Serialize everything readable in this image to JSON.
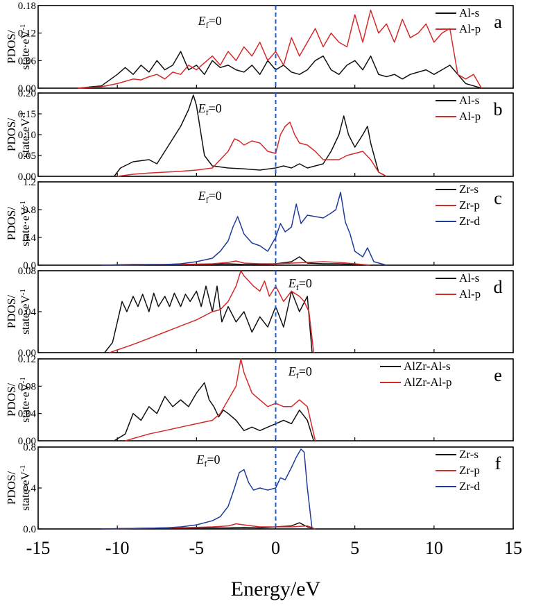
{
  "chart_data": {
    "type": "line",
    "xlabel": "Energy/eV",
    "ylabel_line1": "PDOS/",
    "ylabel_line2": "state·eV",
    "ylabel_sup": "-1",
    "xlim": [
      -15,
      15
    ],
    "xticks": [
      "-15",
      "-10",
      "-5",
      "0",
      "5",
      "10",
      "15"
    ],
    "fermi_label": "E",
    "fermi_sub": "f",
    "fermi_value": "=0",
    "colors": {
      "black": "#111111",
      "red": "#d42a2a",
      "blue": "#1f3c99",
      "fermi": "#1a5bd6"
    },
    "panels": [
      {
        "letter": "a",
        "ylim": [
          0,
          0.18
        ],
        "yticks": [
          "0.00",
          "0.06",
          "0.12",
          "0.18"
        ],
        "legend": [
          {
            "name": "Al-s",
            "color": "black"
          },
          {
            "name": "Al-p",
            "color": "red"
          }
        ],
        "series": [
          {
            "name": "Al-s",
            "color": "black",
            "x": [
              -12.5,
              -11,
              -10,
              -9.5,
              -9,
              -8.5,
              -8,
              -7.5,
              -7,
              -6.5,
              -6,
              -5.5,
              -5,
              -4.5,
              -4,
              -3.5,
              -3,
              -2.5,
              -2,
              -1.5,
              -1,
              -0.5,
              0,
              0.5,
              1,
              1.5,
              2,
              2.5,
              3,
              3.5,
              4,
              4.5,
              5,
              5.5,
              6,
              6.5,
              7,
              7.5,
              8,
              8.5,
              9,
              9.5,
              10,
              10.5,
              11,
              11.5,
              12,
              12.5,
              13
            ],
            "y": [
              0,
              0.005,
              0.03,
              0.045,
              0.03,
              0.05,
              0.035,
              0.06,
              0.04,
              0.05,
              0.08,
              0.04,
              0.05,
              0.03,
              0.06,
              0.045,
              0.05,
              0.04,
              0.035,
              0.05,
              0.03,
              0.06,
              0.04,
              0.05,
              0.035,
              0.03,
              0.04,
              0.06,
              0.07,
              0.04,
              0.03,
              0.05,
              0.06,
              0.04,
              0.07,
              0.03,
              0.025,
              0.03,
              0.02,
              0.03,
              0.035,
              0.04,
              0.03,
              0.04,
              0.05,
              0.03,
              0.01,
              0.005,
              0
            ]
          },
          {
            "name": "Al-p",
            "color": "red",
            "x": [
              -12.5,
              -11,
              -10,
              -9.5,
              -9,
              -8.5,
              -8,
              -7.5,
              -7,
              -6.5,
              -6,
              -5.5,
              -5,
              -4.5,
              -4,
              -3.5,
              -3,
              -2.5,
              -2,
              -1.5,
              -1,
              -0.5,
              0,
              0.5,
              1,
              1.5,
              2,
              2.5,
              3,
              3.5,
              4,
              4.5,
              5,
              5.5,
              6,
              6.5,
              7,
              7.5,
              8,
              8.5,
              9,
              9.5,
              10,
              10.5,
              11,
              11.5,
              12,
              12.5,
              13
            ],
            "y": [
              0,
              0.003,
              0.01,
              0.015,
              0.02,
              0.018,
              0.025,
              0.03,
              0.02,
              0.035,
              0.03,
              0.05,
              0.04,
              0.055,
              0.07,
              0.05,
              0.08,
              0.06,
              0.09,
              0.07,
              0.1,
              0.06,
              0.08,
              0.05,
              0.11,
              0.07,
              0.1,
              0.13,
              0.09,
              0.12,
              0.1,
              0.09,
              0.16,
              0.1,
              0.17,
              0.12,
              0.14,
              0.1,
              0.15,
              0.11,
              0.12,
              0.14,
              0.1,
              0.12,
              0.13,
              0.03,
              0.02,
              0.03,
              0
            ]
          }
        ]
      },
      {
        "letter": "b",
        "ylim": [
          0,
          0.2
        ],
        "yticks": [
          "0.00",
          "0.05",
          "0.10",
          "0.15",
          "0.20"
        ],
        "legend": [
          {
            "name": "Al-s",
            "color": "black"
          },
          {
            "name": "Al-p",
            "color": "red"
          }
        ],
        "series": [
          {
            "name": "Al-s",
            "color": "black",
            "x": [
              -10.2,
              -9.8,
              -9,
              -8,
              -7.5,
              -7,
              -6.5,
              -6,
              -5.5,
              -5.2,
              -5,
              -4.5,
              -4,
              -3,
              -2,
              -1,
              0,
              0.5,
              1,
              1.5,
              2,
              3,
              3.5,
              4,
              4.3,
              4.6,
              5,
              5.5,
              5.8,
              6,
              6.5,
              7
            ],
            "y": [
              0,
              0.02,
              0.035,
              0.04,
              0.03,
              0.06,
              0.09,
              0.12,
              0.16,
              0.195,
              0.17,
              0.05,
              0.025,
              0.02,
              0.018,
              0.015,
              0.02,
              0.025,
              0.02,
              0.03,
              0.02,
              0.03,
              0.06,
              0.1,
              0.145,
              0.1,
              0.07,
              0.1,
              0.12,
              0.08,
              0.01,
              0
            ]
          },
          {
            "name": "Al-p",
            "color": "red",
            "x": [
              -10,
              -9,
              -8,
              -7,
              -6,
              -5,
              -4,
              -3.5,
              -3,
              -2.6,
              -2.3,
              -2,
              -1.5,
              -1,
              -0.5,
              0,
              0.3,
              0.6,
              0.9,
              1.2,
              1.5,
              2,
              2.5,
              3,
              3.5,
              4,
              4.5,
              5,
              5.5,
              6,
              6.5,
              7
            ],
            "y": [
              0,
              0.005,
              0.008,
              0.01,
              0.012,
              0.015,
              0.02,
              0.04,
              0.06,
              0.09,
              0.085,
              0.075,
              0.085,
              0.08,
              0.06,
              0.055,
              0.1,
              0.12,
              0.13,
              0.1,
              0.08,
              0.075,
              0.06,
              0.04,
              0.04,
              0.04,
              0.05,
              0.055,
              0.06,
              0.04,
              0.01,
              0
            ]
          }
        ]
      },
      {
        "letter": "c",
        "ylim": [
          0,
          1.2
        ],
        "yticks": [
          "0.0",
          "0.4",
          "0.8",
          "1.2"
        ],
        "legend": [
          {
            "name": "Zr-s",
            "color": "black"
          },
          {
            "name": "Zr-p",
            "color": "red"
          },
          {
            "name": "Zr-d",
            "color": "blue"
          }
        ],
        "series": [
          {
            "name": "Zr-s",
            "color": "black",
            "x": [
              -11,
              -9,
              -7,
              -5,
              -3,
              -2,
              -1,
              0,
              1,
              1.5,
              2,
              3,
              4,
              5,
              6
            ],
            "y": [
              0,
              0.01,
              0.01,
              0.01,
              0.02,
              0.01,
              0.01,
              0.02,
              0.05,
              0.12,
              0.03,
              0.02,
              0.02,
              0.01,
              0
            ]
          },
          {
            "name": "Zr-p",
            "color": "red",
            "x": [
              -11,
              -9,
              -7,
              -5,
              -4,
              -3,
              -2.5,
              -2,
              -1,
              0,
              1,
              2,
              3,
              4,
              5,
              6
            ],
            "y": [
              0,
              0.005,
              0.01,
              0.015,
              0.02,
              0.04,
              0.06,
              0.03,
              0.02,
              0.02,
              0.03,
              0.04,
              0.05,
              0.04,
              0.02,
              0
            ]
          },
          {
            "name": "Zr-d",
            "color": "blue",
            "x": [
              -11,
              -9,
              -7,
              -6,
              -5,
              -4,
              -3.5,
              -3,
              -2.7,
              -2.4,
              -2,
              -1.5,
              -1,
              -0.5,
              0,
              0.3,
              0.6,
              1,
              1.3,
              1.6,
              2,
              2.5,
              3,
              3.5,
              3.8,
              4.1,
              4.4,
              4.7,
              5,
              5.5,
              5.8,
              6.2,
              7
            ],
            "y": [
              0,
              0.005,
              0.01,
              0.02,
              0.05,
              0.1,
              0.2,
              0.35,
              0.55,
              0.7,
              0.45,
              0.32,
              0.28,
              0.2,
              0.4,
              0.6,
              0.48,
              0.55,
              0.88,
              0.6,
              0.72,
              0.7,
              0.68,
              0.75,
              0.8,
              1.05,
              0.62,
              0.45,
              0.2,
              0.12,
              0.25,
              0.05,
              0
            ]
          }
        ]
      },
      {
        "letter": "d",
        "ylim": [
          0,
          0.08
        ],
        "yticks": [
          "0.00",
          "0.04",
          "0.08"
        ],
        "legend": [
          {
            "name": "Al-s",
            "color": "black"
          },
          {
            "name": "Al-p",
            "color": "red"
          }
        ],
        "series": [
          {
            "name": "Al-s",
            "color": "black",
            "x": [
              -10.8,
              -10.3,
              -10,
              -9.7,
              -9.4,
              -9,
              -8.7,
              -8.4,
              -8,
              -7.7,
              -7.4,
              -7,
              -6.7,
              -6.4,
              -6,
              -5.7,
              -5.4,
              -5,
              -4.7,
              -4.4,
              -4,
              -3.7,
              -3.4,
              -3,
              -2.5,
              -2,
              -1.5,
              -1,
              -0.5,
              0,
              0.5,
              1,
              1.5,
              2,
              2.3
            ],
            "y": [
              0,
              0.01,
              0.03,
              0.05,
              0.04,
              0.055,
              0.045,
              0.057,
              0.04,
              0.058,
              0.045,
              0.055,
              0.045,
              0.058,
              0.045,
              0.057,
              0.05,
              0.06,
              0.045,
              0.065,
              0.04,
              0.065,
              0.03,
              0.045,
              0.03,
              0.04,
              0.02,
              0.035,
              0.025,
              0.045,
              0.025,
              0.06,
              0.04,
              0.055,
              0
            ]
          },
          {
            "name": "Al-p",
            "color": "red",
            "x": [
              -10.5,
              -9,
              -8,
              -7,
              -6,
              -5,
              -4,
              -3.5,
              -3,
              -2.5,
              -2.2,
              -2,
              -1.7,
              -1.4,
              -1,
              -0.7,
              -0.4,
              0,
              0.5,
              1,
              1.5,
              1.8,
              2.1,
              2.4
            ],
            "y": [
              0,
              0.008,
              0.014,
              0.02,
              0.026,
              0.032,
              0.04,
              0.042,
              0.05,
              0.065,
              0.08,
              0.075,
              0.07,
              0.065,
              0.06,
              0.07,
              0.055,
              0.065,
              0.05,
              0.06,
              0.055,
              0.05,
              0.04,
              0
            ]
          }
        ]
      },
      {
        "letter": "e",
        "ylim": [
          0,
          0.12
        ],
        "yticks": [
          "0.00",
          "0.04",
          "0.08",
          "0.12"
        ],
        "legend": [
          {
            "name": "AlZr-Al-s",
            "color": "black"
          },
          {
            "name": "AlZr-Al-p",
            "color": "red"
          }
        ],
        "series": [
          {
            "name": "AlZr-Al-s",
            "color": "black",
            "x": [
              -10.2,
              -9.5,
              -9,
              -8.5,
              -8,
              -7.5,
              -7,
              -6.5,
              -6,
              -5.5,
              -5,
              -4.5,
              -4.2,
              -3.9,
              -3.6,
              -3.3,
              -3,
              -2.5,
              -2,
              -1.5,
              -1,
              -0.5,
              0,
              0.5,
              1,
              1.5,
              2,
              2.4
            ],
            "y": [
              0,
              0.01,
              0.04,
              0.03,
              0.05,
              0.04,
              0.065,
              0.05,
              0.06,
              0.05,
              0.07,
              0.085,
              0.06,
              0.05,
              0.035,
              0.045,
              0.04,
              0.03,
              0.015,
              0.02,
              0.015,
              0.02,
              0.025,
              0.03,
              0.025,
              0.045,
              0.03,
              0
            ]
          },
          {
            "name": "AlZr-Al-p",
            "color": "red",
            "x": [
              -9.5,
              -8,
              -7,
              -6,
              -5,
              -4,
              -3.5,
              -3,
              -2.5,
              -2.2,
              -2,
              -1.5,
              -1,
              -0.5,
              0,
              0.5,
              1,
              1.5,
              2,
              2.5
            ],
            "y": [
              0,
              0.01,
              0.015,
              0.02,
              0.025,
              0.03,
              0.04,
              0.06,
              0.08,
              0.12,
              0.1,
              0.07,
              0.06,
              0.05,
              0.055,
              0.05,
              0.05,
              0.06,
              0.05,
              0
            ]
          }
        ]
      },
      {
        "letter": "f",
        "ylim": [
          0,
          0.8
        ],
        "yticks": [
          "0.0",
          "0.4",
          "0.8"
        ],
        "legend": [
          {
            "name": "Zr-s",
            "color": "black"
          },
          {
            "name": "Zr-p",
            "color": "red"
          },
          {
            "name": "Zr-d",
            "color": "blue"
          }
        ],
        "series": [
          {
            "name": "Zr-s",
            "color": "black",
            "x": [
              -11,
              -9,
              -7,
              -5,
              -3,
              -2,
              -1,
              0,
              1,
              1.5,
              2,
              2.5
            ],
            "y": [
              0,
              0.005,
              0.01,
              0.01,
              0.01,
              0.015,
              0.01,
              0.02,
              0.03,
              0.06,
              0.02,
              0
            ]
          },
          {
            "name": "Zr-p",
            "color": "red",
            "x": [
              -11,
              -9,
              -7,
              -5,
              -4,
              -3,
              -2.5,
              -2,
              -1,
              0,
              1,
              2,
              2.5
            ],
            "y": [
              0,
              0.005,
              0.01,
              0.015,
              0.02,
              0.03,
              0.05,
              0.04,
              0.02,
              0.02,
              0.02,
              0.03,
              0
            ]
          },
          {
            "name": "Zr-d",
            "color": "blue",
            "x": [
              -11,
              -9,
              -7,
              -6,
              -5,
              -4,
              -3.5,
              -3,
              -2.6,
              -2.3,
              -2,
              -1.7,
              -1.4,
              -1,
              -0.5,
              0,
              0.3,
              0.6,
              1,
              1.3,
              1.6,
              1.8,
              2,
              2.3
            ],
            "y": [
              0,
              0.005,
              0.01,
              0.02,
              0.04,
              0.08,
              0.12,
              0.22,
              0.4,
              0.55,
              0.58,
              0.45,
              0.38,
              0.4,
              0.38,
              0.4,
              0.5,
              0.48,
              0.6,
              0.7,
              0.78,
              0.75,
              0.4,
              0
            ]
          }
        ]
      }
    ]
  }
}
